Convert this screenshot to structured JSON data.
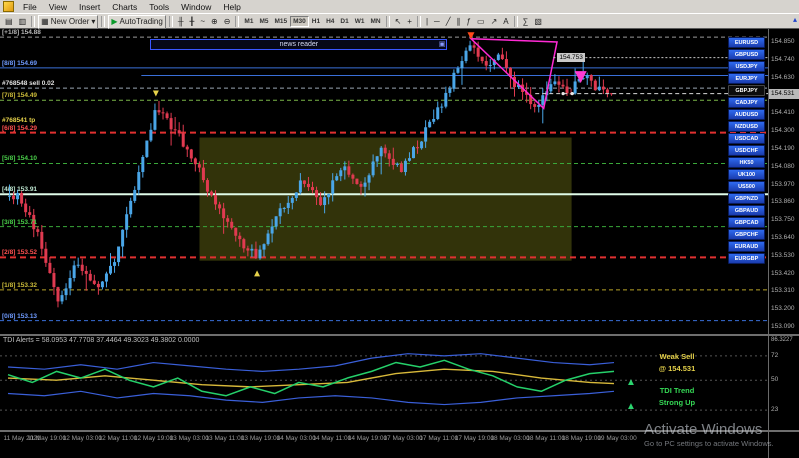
{
  "app": {
    "menu": [
      "File",
      "View",
      "Insert",
      "Charts",
      "Tools",
      "Window",
      "Help"
    ]
  },
  "toolbar": {
    "new_order_label": "New Order",
    "new_order_glyph": "▦",
    "caret_glyph": "▾",
    "autotrading_label": "AutoTrading",
    "autotrading_glyph": "▶",
    "scroll_up_glyph": "▴",
    "timeframes": [
      "M1",
      "M5",
      "M15",
      "M30",
      "H1",
      "H4",
      "D1",
      "W1",
      "MN"
    ],
    "active_timeframe": "M30",
    "icons_left": [
      {
        "name": "new-chart-icon",
        "g": "▤"
      },
      {
        "name": "profiles-icon",
        "g": "▥"
      }
    ],
    "icons_mid": [
      {
        "name": "bar-chart-icon",
        "g": "╫"
      },
      {
        "name": "candlestick-chart-icon",
        "g": "╂"
      },
      {
        "name": "line-chart-icon",
        "g": "~"
      },
      {
        "name": "zoom-in-icon",
        "g": "⊕"
      },
      {
        "name": "zoom-out-icon",
        "g": "⊖"
      }
    ],
    "icons_cursor": [
      {
        "name": "cursor-icon",
        "g": "↖"
      },
      {
        "name": "crosshair-icon",
        "g": "+"
      }
    ],
    "icons_draw": [
      {
        "name": "vertical-line-icon",
        "g": "|"
      },
      {
        "name": "horizontal-line-icon",
        "g": "─"
      },
      {
        "name": "trendline-icon",
        "g": "╱"
      },
      {
        "name": "equidistant-channel-icon",
        "g": "∥"
      },
      {
        "name": "fibonacci-icon",
        "g": "ƒ"
      },
      {
        "name": "shapes-icon",
        "g": "▭"
      },
      {
        "name": "arrows-icon",
        "g": "↗"
      },
      {
        "name": "text-label-icon",
        "g": "A"
      }
    ],
    "icons_right": [
      {
        "name": "indicators-icon",
        "g": "∑"
      },
      {
        "name": "templates-icon",
        "g": "▧"
      }
    ]
  },
  "symbols": {
    "selected": "GBPJPY",
    "items": [
      "EURUSD",
      "GBPUSD",
      "USDJPY",
      "EURJPY",
      "GBPJPY",
      "CADJPY",
      "AUDUSD",
      "NZDUSD",
      "USDCAD",
      "USDCHF",
      "HK50",
      "UK100",
      "US500",
      "GBPNZD",
      "GBPAUD",
      "GBPCAD",
      "GBPCHF",
      "EURAUD",
      "EURGBP"
    ]
  },
  "chart": {
    "murrey_labels": [
      {
        "label": "[+1/8] 154.88",
        "price": 154.88,
        "text_color": "#b8b8b8",
        "line_color": "#9a9a9a",
        "style": "dash",
        "width": 1
      },
      {
        "label": "[8/8] 154.69",
        "price": 154.69,
        "text_color": "#6f9bff",
        "line_color": "#3a6fd8",
        "style": "solid",
        "width": 1
      },
      {
        "label": "[7/8] 154.49",
        "price": 154.49,
        "text_color": "#cdbd3a",
        "line_color": "#7ab648",
        "style": "dash",
        "width": 1
      },
      {
        "label": "[6/8] 154.29",
        "price": 154.29,
        "text_color": "#ff5050",
        "line_color": "#e03030",
        "style": "dash",
        "width": 2
      },
      {
        "label": "[5/8] 154.10",
        "price": 154.1,
        "text_color": "#4ad04a",
        "line_color": "#3aa83a",
        "style": "dash",
        "width": 1
      },
      {
        "label": "[4/8] 153.91",
        "price": 153.91,
        "text_color": "#bfe8d2",
        "line_color": "#dffbe8",
        "style": "solid",
        "width": 2
      },
      {
        "label": "[3/8] 153.71",
        "price": 153.71,
        "text_color": "#4ad04a",
        "line_color": "#3aa83a",
        "style": "dash",
        "width": 1
      },
      {
        "label": "[2/8] 153.52",
        "price": 153.52,
        "text_color": "#ff5050",
        "line_color": "#e03030",
        "style": "dash",
        "width": 2
      },
      {
        "label": "[1/8] 153.32",
        "price": 153.32,
        "text_color": "#cdbd3a",
        "line_color": "#b8a428",
        "style": "dash",
        "width": 1
      },
      {
        "label": "[0/8] 153.13",
        "price": 153.13,
        "text_color": "#6f9bff",
        "line_color": "#3a6fd8",
        "style": "dash",
        "width": 1
      }
    ],
    "extra_lines": [
      {
        "price": 154.643,
        "color": "#3a6fd8",
        "style": "solid",
        "width": 1
      }
    ],
    "trades": [
      {
        "label": "#768548 sell 0.02",
        "price": 154.565,
        "text_color": "#e0e0e0",
        "line_color": "#9aa6b2"
      },
      {
        "label": "#768541 tp",
        "price": 154.335,
        "text_color": "#e6d24a",
        "line_color": ""
      }
    ],
    "news_box": {
      "text": "news reader",
      "icon_glyph": "▣",
      "t1": 0.235,
      "t2": 0.725,
      "price": 154.84
    },
    "alert_tag": {
      "text": "154.753",
      "price": 154.753,
      "t": 0.9
    },
    "bid_tag": {
      "text": "154.531",
      "price": 154.531
    },
    "axis_ticks": [
      "154.850",
      "154.740",
      "154.630",
      "154.520",
      "154.410",
      "154.300",
      "154.190",
      "154.080",
      "153.970",
      "153.860",
      "153.750",
      "153.640",
      "153.530",
      "153.420",
      "153.310",
      "153.200",
      "153.090"
    ],
    "time_labels": [
      "11 May 2021",
      "11 May 19:00",
      "12 May 03:00",
      "12 May 11:00",
      "12 May 19:00",
      "13 May 03:00",
      "13 May 11:00",
      "13 May 19:00",
      "14 May 03:00",
      "14 May 11:00",
      "14 May 19:00",
      "17 May 03:00",
      "17 May 11:00",
      "17 May 19:00",
      "18 May 03:00",
      "18 May 11:00",
      "18 May 19:00",
      "19 May 03:00"
    ]
  },
  "tdi": {
    "header": "TDI Alerts = 58.0953 47.7708 37.4464 49.3023 49.3802 0.0000",
    "scale_top": "86.3227",
    "arrow_glyph": "▲",
    "levels": [
      {
        "label": "72",
        "value": 72
      },
      {
        "label": "50",
        "value": 50
      },
      {
        "label": "23",
        "value": 23
      }
    ],
    "signals": {
      "line1": "Weak Sell",
      "line2": "@ 154.531",
      "line3": "TDI Trend",
      "line4": "Strong Up"
    },
    "colors": {
      "band": "#3a5fd9",
      "signal": "#d8b93a",
      "rsi": "#25d06a",
      "level": "#555555"
    }
  },
  "watermark": {
    "line1": "Activate Windows",
    "line2": "Go to PC settings to activate Windows."
  },
  "chart_data": {
    "type": "candlestick",
    "instrument": "GBPJPY",
    "timeframe": "M30",
    "price_axis_range": [
      153.05,
      154.93
    ],
    "price_path_anchors": [
      [
        0.0,
        153.9
      ],
      [
        0.016,
        153.9
      ],
      [
        0.049,
        153.65
      ],
      [
        0.081,
        153.25
      ],
      [
        0.114,
        153.5
      ],
      [
        0.146,
        153.3
      ],
      [
        0.179,
        153.55
      ],
      [
        0.211,
        154.0
      ],
      [
        0.244,
        154.45
      ],
      [
        0.276,
        154.3
      ],
      [
        0.309,
        154.1
      ],
      [
        0.341,
        153.85
      ],
      [
        0.374,
        153.65
      ],
      [
        0.411,
        153.52
      ],
      [
        0.447,
        153.8
      ],
      [
        0.488,
        154.0
      ],
      [
        0.52,
        153.85
      ],
      [
        0.553,
        154.1
      ],
      [
        0.585,
        153.95
      ],
      [
        0.618,
        154.2
      ],
      [
        0.65,
        154.05
      ],
      [
        0.683,
        154.25
      ],
      [
        0.715,
        154.45
      ],
      [
        0.74,
        154.65
      ],
      [
        0.764,
        154.85
      ],
      [
        0.789,
        154.7
      ],
      [
        0.813,
        154.78
      ],
      [
        0.837,
        154.6
      ],
      [
        0.862,
        154.5
      ],
      [
        0.878,
        154.45
      ],
      [
        0.902,
        154.62
      ],
      [
        0.927,
        154.52
      ],
      [
        0.951,
        154.66
      ],
      [
        0.976,
        154.55
      ],
      [
        1.0,
        154.55
      ]
    ],
    "consolidation_box": {
      "t1": 0.316,
      "t2": 0.93,
      "price_top": 154.26,
      "price_bottom": 153.5,
      "fill": "#32330a"
    },
    "triangle_pattern": {
      "points": [
        [
          0.764,
          154.87
        ],
        [
          0.906,
          154.85
        ],
        [
          0.884,
          154.44
        ]
      ],
      "color": "#ff2ad4"
    },
    "arrows": [
      {
        "t": 0.764,
        "price": 154.91,
        "dir": "down",
        "color": "#ff4a1a",
        "size": 7
      },
      {
        "t": 0.244,
        "price": 154.55,
        "dir": "down",
        "color": "#e6d24a",
        "size": 6
      },
      {
        "t": 0.411,
        "price": 153.44,
        "dir": "up",
        "color": "#e6d24a",
        "size": 6
      },
      {
        "t": 0.945,
        "price": 154.67,
        "dir": "down",
        "color": "#ff3ad4",
        "size": 12
      }
    ],
    "bid_price": 154.531,
    "order_dots": [
      [
        0.916,
        154.531
      ],
      [
        0.931,
        154.531
      ]
    ],
    "candle_colors": {
      "up": "#4aa6e8",
      "down": "#e03a50"
    },
    "tdi_lines": {
      "upper_band": [
        [
          0,
          62
        ],
        [
          0.06,
          60
        ],
        [
          0.12,
          64
        ],
        [
          0.18,
          60
        ],
        [
          0.24,
          66
        ],
        [
          0.3,
          63
        ],
        [
          0.36,
          60
        ],
        [
          0.42,
          58
        ],
        [
          0.48,
          60
        ],
        [
          0.54,
          63
        ],
        [
          0.6,
          70
        ],
        [
          0.66,
          74
        ],
        [
          0.72,
          72
        ],
        [
          0.78,
          74
        ],
        [
          0.84,
          70
        ],
        [
          0.9,
          66
        ],
        [
          0.96,
          64
        ],
        [
          1,
          66
        ]
      ],
      "lower_band": [
        [
          0,
          38
        ],
        [
          0.06,
          36
        ],
        [
          0.12,
          40
        ],
        [
          0.18,
          34
        ],
        [
          0.24,
          38
        ],
        [
          0.3,
          36
        ],
        [
          0.36,
          32
        ],
        [
          0.42,
          30
        ],
        [
          0.48,
          34
        ],
        [
          0.54,
          36
        ],
        [
          0.6,
          34
        ],
        [
          0.66,
          30
        ],
        [
          0.72,
          28
        ],
        [
          0.78,
          30
        ],
        [
          0.84,
          34
        ],
        [
          0.9,
          36
        ],
        [
          0.96,
          38
        ],
        [
          1,
          40
        ]
      ],
      "signal": [
        [
          0,
          52
        ],
        [
          0.08,
          50
        ],
        [
          0.16,
          54
        ],
        [
          0.24,
          50
        ],
        [
          0.32,
          46
        ],
        [
          0.4,
          44
        ],
        [
          0.48,
          46
        ],
        [
          0.56,
          48
        ],
        [
          0.64,
          56
        ],
        [
          0.72,
          60
        ],
        [
          0.8,
          58
        ],
        [
          0.88,
          52
        ],
        [
          0.96,
          48
        ],
        [
          1,
          47
        ]
      ],
      "rsi": [
        [
          0,
          55
        ],
        [
          0.04,
          48
        ],
        [
          0.08,
          58
        ],
        [
          0.12,
          52
        ],
        [
          0.16,
          60
        ],
        [
          0.2,
          50
        ],
        [
          0.24,
          44
        ],
        [
          0.28,
          52
        ],
        [
          0.32,
          40
        ],
        [
          0.36,
          36
        ],
        [
          0.4,
          44
        ],
        [
          0.44,
          38
        ],
        [
          0.48,
          48
        ],
        [
          0.52,
          44
        ],
        [
          0.56,
          52
        ],
        [
          0.6,
          58
        ],
        [
          0.64,
          66
        ],
        [
          0.68,
          62
        ],
        [
          0.72,
          68
        ],
        [
          0.76,
          60
        ],
        [
          0.8,
          54
        ],
        [
          0.84,
          44
        ],
        [
          0.88,
          40
        ],
        [
          0.92,
          50
        ],
        [
          0.96,
          56
        ],
        [
          1,
          58
        ]
      ]
    }
  }
}
